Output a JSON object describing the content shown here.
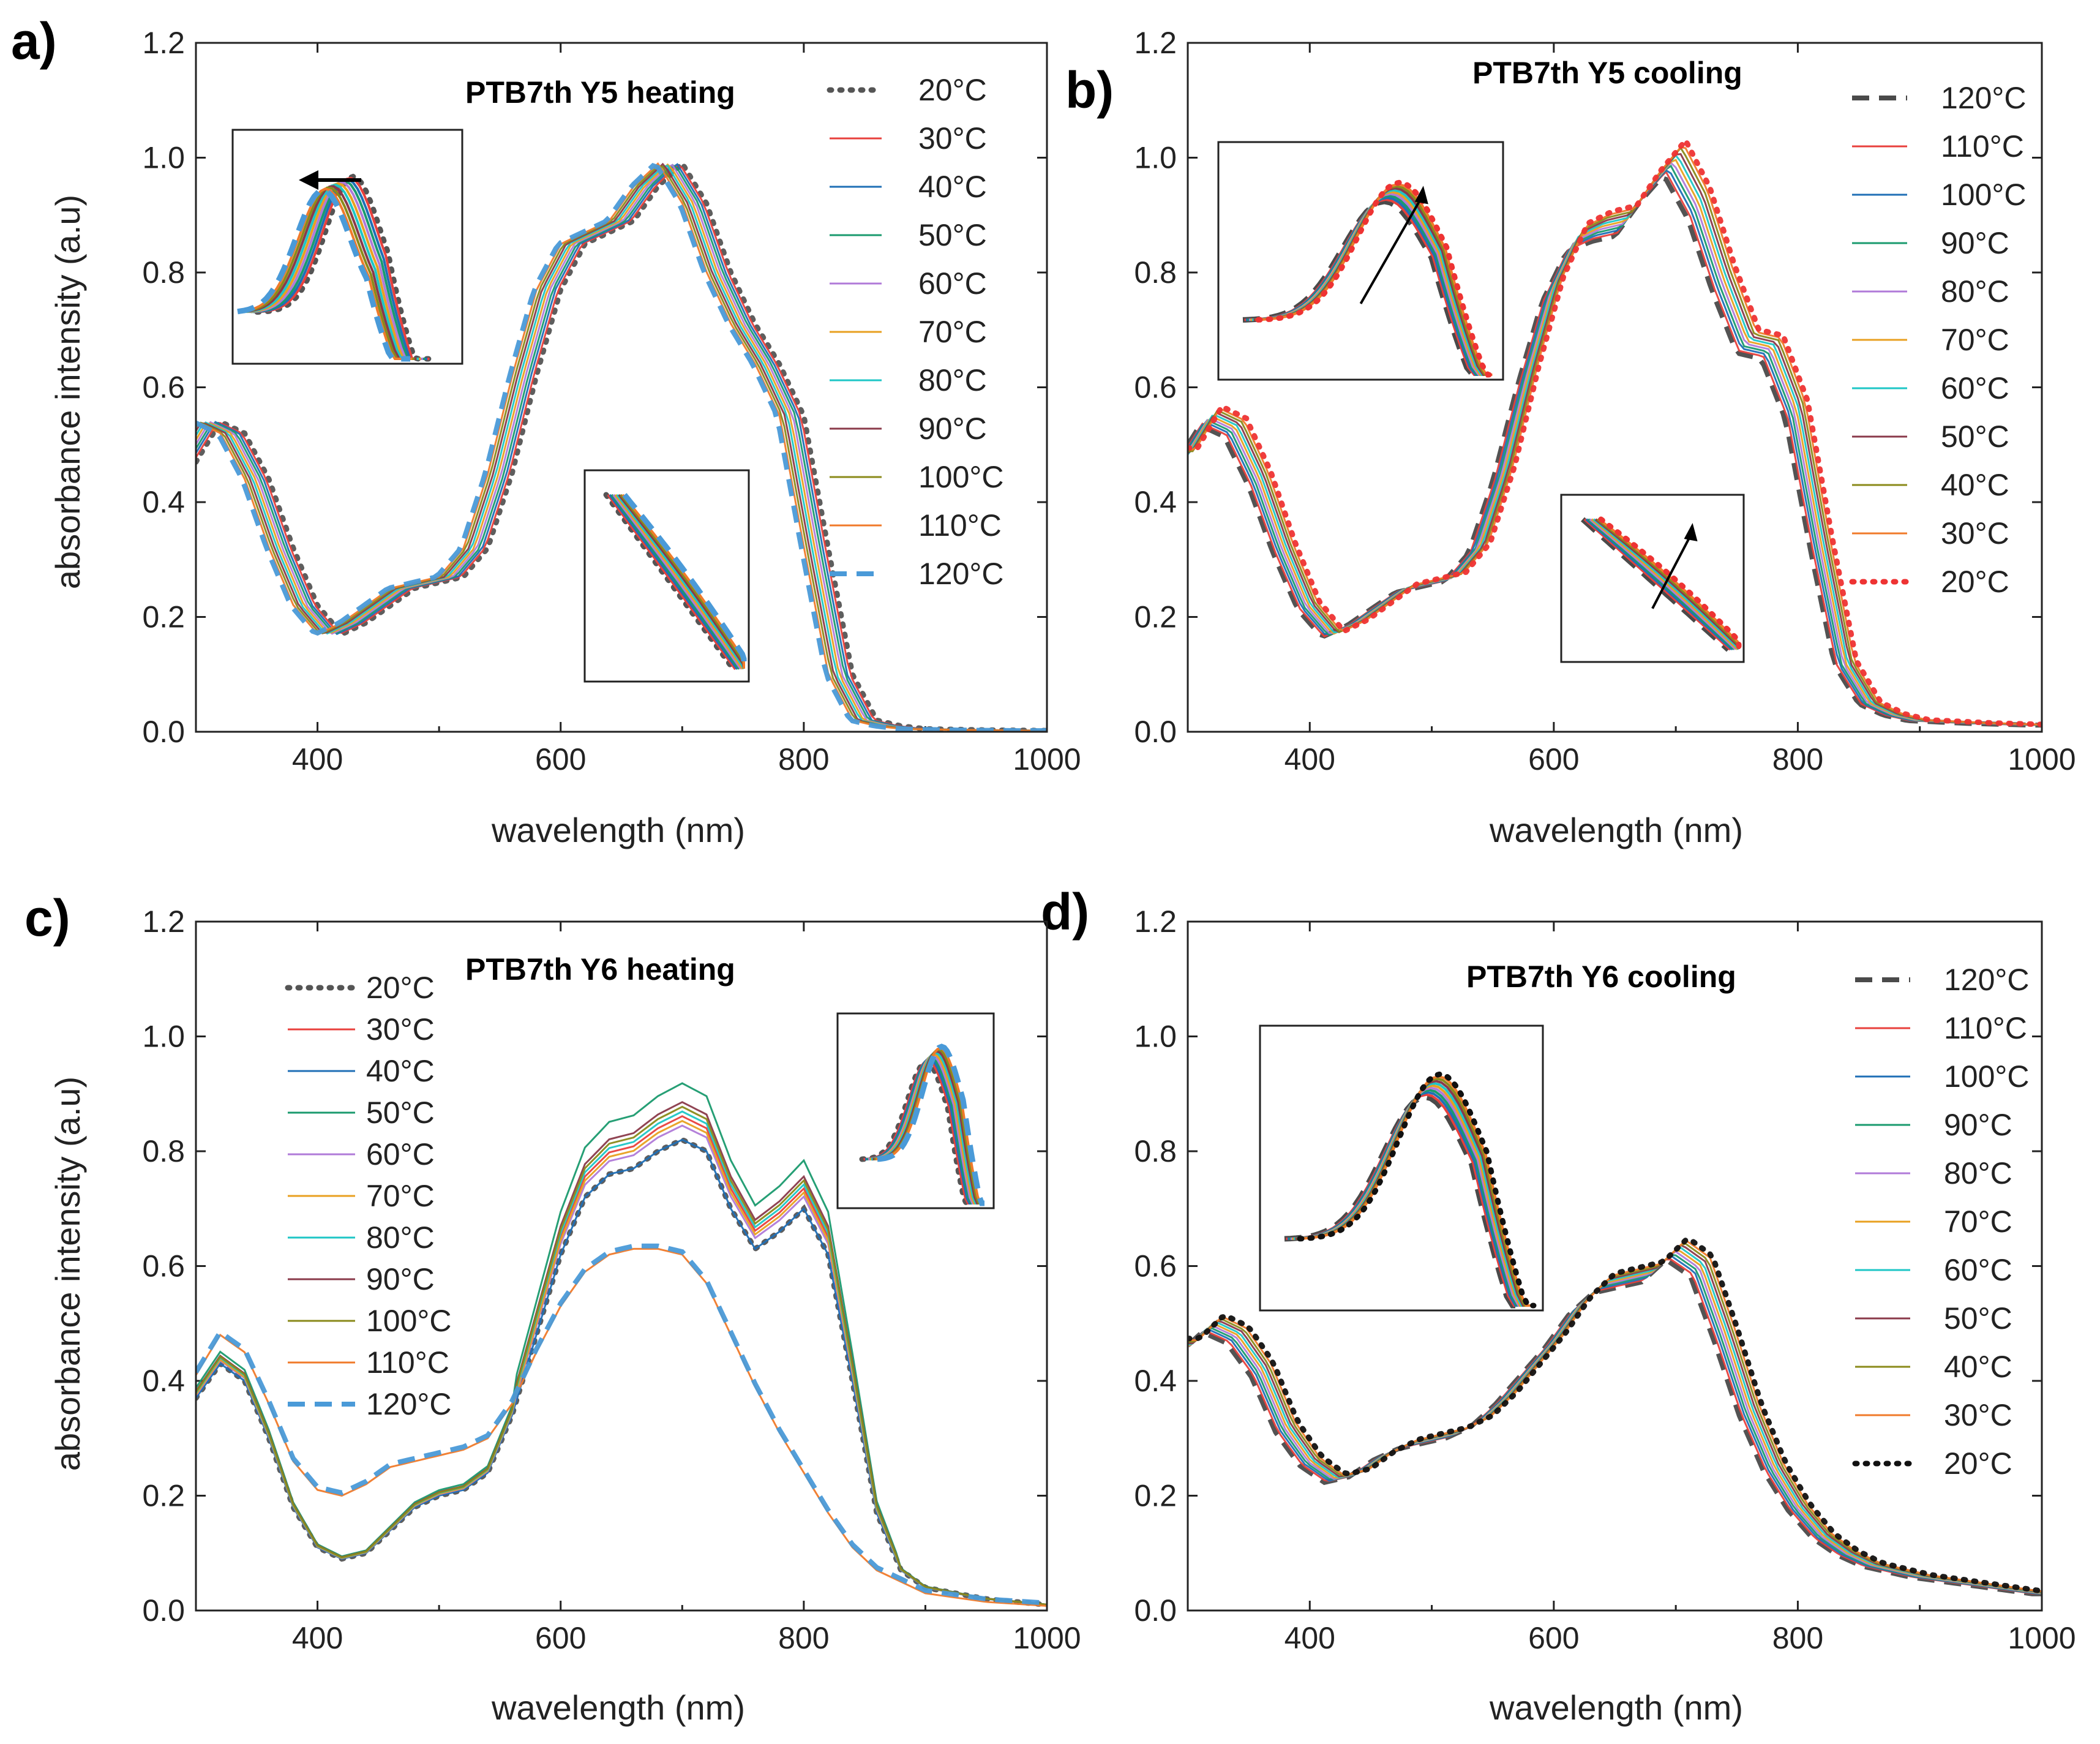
{
  "figure": {
    "y_axis_label": "absorbance intensity (a.u)",
    "x_axis_label": "wavelength (nm)"
  },
  "colors": {
    "20C_dot": "#555555",
    "30C": "#e8403c",
    "40C": "#1f6fb6",
    "50C": "#1a9a6e",
    "60C": "#b07ad8",
    "70C": "#e8a020",
    "80C": "#1ec6c6",
    "90C": "#8a3a4a",
    "100C": "#8a8a1a",
    "110C": "#f07a2a",
    "120C": "#4a9ad8",
    "120C_cool": "#4a4a4a",
    "20C_red": "#ee3333",
    "20C_black": "#111111"
  },
  "chart_data": [
    {
      "panel": "a)",
      "type": "line",
      "title": "PTB7th Y5 heating",
      "xlabel": "wavelength (nm)",
      "ylabel": "absorbance intensity (a.u)",
      "xlim": [
        300,
        1000
      ],
      "ylim": [
        0,
        1.2
      ],
      "xticks": [
        "400",
        "600",
        "800",
        "1000"
      ],
      "yticks": [
        "0.0",
        "0.2",
        "0.4",
        "0.6",
        "0.8",
        "1.0",
        "1.2"
      ],
      "legend_position": "right",
      "base_curve": {
        "x": [
          300,
          320,
          340,
          360,
          380,
          400,
          420,
          440,
          460,
          480,
          500,
          520,
          540,
          560,
          580,
          600,
          620,
          640,
          660,
          680,
          700,
          720,
          740,
          760,
          780,
          800,
          820,
          840,
          860,
          880,
          900,
          950,
          1000
        ],
        "y": [
          0.47,
          0.54,
          0.52,
          0.44,
          0.32,
          0.22,
          0.17,
          0.19,
          0.22,
          0.25,
          0.26,
          0.27,
          0.32,
          0.45,
          0.62,
          0.77,
          0.85,
          0.87,
          0.89,
          0.95,
          0.99,
          0.92,
          0.8,
          0.71,
          0.64,
          0.55,
          0.32,
          0.1,
          0.02,
          0.01,
          0.005,
          0.003,
          0.002
        ]
      },
      "series": [
        {
          "name": "20°C",
          "color": "#555555",
          "style": "dotted",
          "peak_nm": 712,
          "peak": 1.0
        },
        {
          "name": "30°C",
          "color": "#e8403c",
          "style": "solid",
          "peak_nm": 712,
          "peak": 1.01
        },
        {
          "name": "40°C",
          "color": "#1f6fb6",
          "style": "solid",
          "peak_nm": 709,
          "peak": 1.0
        },
        {
          "name": "50°C",
          "color": "#1a9a6e",
          "style": "solid",
          "peak_nm": 706,
          "peak": 0.99
        },
        {
          "name": "60°C",
          "color": "#b07ad8",
          "style": "solid",
          "peak_nm": 703,
          "peak": 0.99
        },
        {
          "name": "70°C",
          "color": "#e8a020",
          "style": "solid",
          "peak_nm": 700,
          "peak": 0.98
        },
        {
          "name": "80°C",
          "color": "#1ec6c6",
          "style": "solid",
          "peak_nm": 697,
          "peak": 0.99
        },
        {
          "name": "90°C",
          "color": "#8a3a4a",
          "style": "solid",
          "peak_nm": 694,
          "peak": 1.0
        },
        {
          "name": "100°C",
          "color": "#8a8a1a",
          "style": "solid",
          "peak_nm": 692,
          "peak": 0.99
        },
        {
          "name": "110°C",
          "color": "#f07a2a",
          "style": "solid",
          "peak_nm": 690,
          "peak": 0.98
        },
        {
          "name": "120°C",
          "color": "#4a9ad8",
          "style": "dashed",
          "peak_nm": 690,
          "peak": 0.98
        }
      ],
      "insets": [
        "peak shift (arrow left)",
        "800 nm edge"
      ]
    },
    {
      "panel": "b)",
      "type": "line",
      "title": "PTB7th Y5 cooling",
      "xlabel": "wavelength (nm)",
      "ylabel": "",
      "xlim": [
        300,
        1000
      ],
      "ylim": [
        0,
        1.2
      ],
      "xticks": [
        "400",
        "600",
        "800",
        "1000"
      ],
      "yticks": [
        "0.0",
        "0.2",
        "0.4",
        "0.6",
        "0.8",
        "1.0",
        "1.2"
      ],
      "legend_position": "right",
      "base_curve": {
        "x": [
          300,
          320,
          340,
          360,
          380,
          400,
          420,
          440,
          460,
          480,
          500,
          520,
          540,
          560,
          580,
          600,
          620,
          640,
          660,
          680,
          700,
          720,
          740,
          760,
          780,
          800,
          820,
          840,
          860,
          880,
          900,
          950,
          1000
        ],
        "y": [
          0.48,
          0.55,
          0.53,
          0.44,
          0.32,
          0.22,
          0.17,
          0.19,
          0.22,
          0.25,
          0.26,
          0.27,
          0.32,
          0.45,
          0.62,
          0.77,
          0.86,
          0.88,
          0.89,
          0.95,
          1.0,
          0.92,
          0.79,
          0.68,
          0.67,
          0.56,
          0.33,
          0.12,
          0.05,
          0.03,
          0.02,
          0.015,
          0.012
        ]
      },
      "series": [
        {
          "name": "120°C",
          "color": "#4a4a4a",
          "style": "dashed",
          "peak_nm": 695,
          "peak": 0.97
        },
        {
          "name": "110°C",
          "color": "#e8403c",
          "style": "solid",
          "peak_nm": 698,
          "peak": 0.98
        },
        {
          "name": "100°C",
          "color": "#1f6fb6",
          "style": "solid",
          "peak_nm": 700,
          "peak": 0.99
        },
        {
          "name": "90°C",
          "color": "#1a9a6e",
          "style": "solid",
          "peak_nm": 702,
          "peak": 1.0
        },
        {
          "name": "80°C",
          "color": "#b07ad8",
          "style": "solid",
          "peak_nm": 704,
          "peak": 1.01
        },
        {
          "name": "70°C",
          "color": "#e8a020",
          "style": "solid",
          "peak_nm": 705,
          "peak": 1.02
        },
        {
          "name": "60°C",
          "color": "#1ec6c6",
          "style": "solid",
          "peak_nm": 706,
          "peak": 1.02
        },
        {
          "name": "50°C",
          "color": "#8a3a4a",
          "style": "solid",
          "peak_nm": 707,
          "peak": 1.03
        },
        {
          "name": "40°C",
          "color": "#8a8a1a",
          "style": "solid",
          "peak_nm": 708,
          "peak": 1.03
        },
        {
          "name": "30°C",
          "color": "#f07a2a",
          "style": "solid",
          "peak_nm": 708,
          "peak": 1.03
        },
        {
          "name": "20°C",
          "color": "#ee3333",
          "style": "dotted",
          "peak_nm": 708,
          "peak": 1.03
        }
      ],
      "insets": [
        "peak rise (arrow up)",
        "shoulder rise (arrow up)"
      ]
    },
    {
      "panel": "c)",
      "type": "line",
      "title": "PTB7th Y6 heating",
      "xlabel": "wavelength (nm)",
      "ylabel": "absorbance intensity (a.u)",
      "xlim": [
        300,
        1000
      ],
      "ylim": [
        0,
        1.2
      ],
      "xticks": [
        "400",
        "600",
        "800",
        "1000"
      ],
      "yticks": [
        "0.0",
        "0.2",
        "0.4",
        "0.6",
        "0.8",
        "1.0",
        "1.2"
      ],
      "legend_position": "left",
      "base_curve": {
        "x": [
          300,
          320,
          340,
          360,
          380,
          400,
          420,
          440,
          460,
          480,
          500,
          520,
          540,
          560,
          580,
          600,
          620,
          640,
          660,
          680,
          700,
          720,
          740,
          760,
          780,
          800,
          820,
          840,
          860,
          880,
          900,
          950,
          1000
        ],
        "y": [
          0.37,
          0.43,
          0.4,
          0.3,
          0.18,
          0.11,
          0.09,
          0.1,
          0.14,
          0.18,
          0.2,
          0.21,
          0.24,
          0.34,
          0.48,
          0.62,
          0.72,
          0.76,
          0.77,
          0.8,
          0.82,
          0.8,
          0.7,
          0.63,
          0.66,
          0.7,
          0.62,
          0.4,
          0.17,
          0.07,
          0.04,
          0.02,
          0.01
        ]
      },
      "degraded_curve": {
        "x": [
          300,
          320,
          340,
          360,
          380,
          400,
          420,
          440,
          460,
          480,
          500,
          520,
          540,
          560,
          580,
          600,
          620,
          640,
          660,
          680,
          700,
          720,
          740,
          760,
          780,
          800,
          820,
          840,
          860,
          880,
          900,
          950,
          1000
        ],
        "y": [
          0.41,
          0.48,
          0.45,
          0.36,
          0.26,
          0.21,
          0.2,
          0.22,
          0.25,
          0.26,
          0.27,
          0.28,
          0.3,
          0.36,
          0.45,
          0.53,
          0.59,
          0.62,
          0.63,
          0.63,
          0.62,
          0.57,
          0.48,
          0.39,
          0.31,
          0.24,
          0.17,
          0.11,
          0.07,
          0.05,
          0.03,
          0.015,
          0.008
        ]
      },
      "series": [
        {
          "name": "20°C",
          "color": "#555555",
          "style": "dotted",
          "scale": 1.0
        },
        {
          "name": "30°C",
          "color": "#e8403c",
          "style": "solid",
          "scale": 1.05
        },
        {
          "name": "40°C",
          "color": "#1f6fb6",
          "style": "solid",
          "scale": 1.0
        },
        {
          "name": "50°C",
          "color": "#1a9a6e",
          "style": "solid",
          "scale": 1.12
        },
        {
          "name": "60°C",
          "color": "#b07ad8",
          "style": "solid",
          "scale": 1.03
        },
        {
          "name": "70°C",
          "color": "#e8a020",
          "style": "solid",
          "scale": 1.04
        },
        {
          "name": "80°C",
          "color": "#1ec6c6",
          "style": "solid",
          "scale": 1.06
        },
        {
          "name": "90°C",
          "color": "#8a3a4a",
          "style": "solid",
          "scale": 1.08
        },
        {
          "name": "100°C",
          "color": "#8a8a1a",
          "style": "solid",
          "scale": 1.07
        },
        {
          "name": "110°C",
          "color": "#f07a2a",
          "style": "solid",
          "scale": 1.0
        },
        {
          "name": "120°C",
          "color": "#4a9ad8",
          "style": "dashed",
          "scale": 1.0
        }
      ],
      "insets": [
        "peak region"
      ]
    },
    {
      "panel": "d)",
      "type": "line",
      "title": "PTB7th Y6 cooling",
      "xlabel": "wavelength (nm)",
      "ylabel": "",
      "xlim": [
        300,
        1000
      ],
      "ylim": [
        0,
        1.2
      ],
      "xticks": [
        "400",
        "600",
        "800",
        "1000"
      ],
      "yticks": [
        "0.0",
        "0.2",
        "0.4",
        "0.6",
        "0.8",
        "1.0",
        "1.2"
      ],
      "legend_position": "right",
      "base_curve": {
        "x": [
          300,
          320,
          340,
          360,
          380,
          400,
          420,
          440,
          460,
          480,
          500,
          520,
          540,
          560,
          580,
          600,
          620,
          640,
          660,
          680,
          700,
          720,
          740,
          760,
          780,
          800,
          820,
          840,
          860,
          880,
          900,
          950,
          1000
        ],
        "y": [
          0.46,
          0.5,
          0.48,
          0.42,
          0.32,
          0.26,
          0.23,
          0.24,
          0.27,
          0.29,
          0.3,
          0.31,
          0.33,
          0.37,
          0.42,
          0.47,
          0.53,
          0.57,
          0.58,
          0.59,
          0.63,
          0.6,
          0.48,
          0.35,
          0.25,
          0.18,
          0.13,
          0.1,
          0.08,
          0.07,
          0.06,
          0.045,
          0.03
        ]
      },
      "series": [
        {
          "name": "120°C",
          "color": "#4a4a4a",
          "style": "dashed",
          "peak_nm": 700,
          "peak": 0.6
        },
        {
          "name": "110°C",
          "color": "#e8403c",
          "style": "solid",
          "peak_nm": 702,
          "peak": 0.61
        },
        {
          "name": "100°C",
          "color": "#1f6fb6",
          "style": "solid",
          "peak_nm": 703,
          "peak": 0.62
        },
        {
          "name": "90°C",
          "color": "#1a9a6e",
          "style": "solid",
          "peak_nm": 704,
          "peak": 0.62
        },
        {
          "name": "80°C",
          "color": "#b07ad8",
          "style": "solid",
          "peak_nm": 705,
          "peak": 0.63
        },
        {
          "name": "70°C",
          "color": "#e8a020",
          "style": "solid",
          "peak_nm": 706,
          "peak": 0.64
        },
        {
          "name": "60°C",
          "color": "#1ec6c6",
          "style": "solid",
          "peak_nm": 707,
          "peak": 0.64
        },
        {
          "name": "50°C",
          "color": "#8a3a4a",
          "style": "solid",
          "peak_nm": 708,
          "peak": 0.65
        },
        {
          "name": "40°C",
          "color": "#8a8a1a",
          "style": "solid",
          "peak_nm": 709,
          "peak": 0.65
        },
        {
          "name": "30°C",
          "color": "#f07a2a",
          "style": "solid",
          "peak_nm": 710,
          "peak": 0.65
        },
        {
          "name": "20°C",
          "color": "#111111",
          "style": "dotted",
          "peak_nm": 710,
          "peak": 0.65
        }
      ],
      "insets": [
        "peak region"
      ]
    }
  ]
}
